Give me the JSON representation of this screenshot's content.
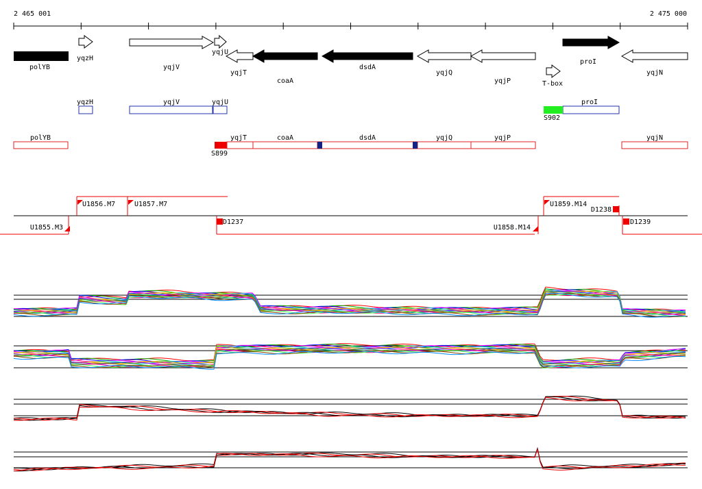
{
  "ruler": {
    "start": "2 465 001",
    "end": "2 475 000"
  },
  "genes": [
    "polYB",
    "yqzH",
    "yqjV",
    "yqjU",
    "yqjT",
    "coaA",
    "dsdA",
    "yqjQ",
    "yqjP",
    "T-box",
    "proI",
    "yqjN"
  ],
  "upper_features": [
    "yqzH",
    "yqjV",
    "yqjU",
    "proI",
    "S902"
  ],
  "lower_features": [
    "polYB",
    "S899",
    "yqjT",
    "coaA",
    "dsdA",
    "yqjQ",
    "yqjP",
    "yqjN"
  ],
  "transcripts": [
    "U1855.M3",
    "U1856.M7",
    "U1857.M7",
    "D1237",
    "U1858.M14",
    "U1859.M14",
    "D1238",
    "D1239"
  ]
}
